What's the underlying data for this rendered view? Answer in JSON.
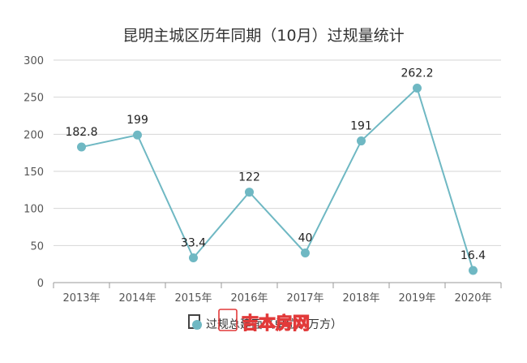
{
  "chart_data": {
    "type": "line",
    "title": "昆明主城区历年同期（10月）过规量统计",
    "categories": [
      "2013年",
      "2014年",
      "2015年",
      "2016年",
      "2017年",
      "2018年",
      "2019年",
      "2020年"
    ],
    "series": [
      {
        "name": "过规总建面（单位：万方）",
        "values": [
          182.8,
          199,
          33.4,
          122,
          40,
          191,
          262.2,
          16.4
        ],
        "color": "#6fb8c3"
      }
    ],
    "data_labels": [
      "182.8",
      "199",
      "33.4",
      "122",
      "40",
      "191",
      "262.2",
      "16.4"
    ],
    "y_ticks": [
      "0",
      "50",
      "100",
      "150",
      "200",
      "250",
      "300"
    ],
    "ylim": [
      0,
      300
    ],
    "grid": true,
    "legend_position": "bottom"
  },
  "watermark": {
    "text": "吉本房网",
    "color": "#e23a3a"
  }
}
